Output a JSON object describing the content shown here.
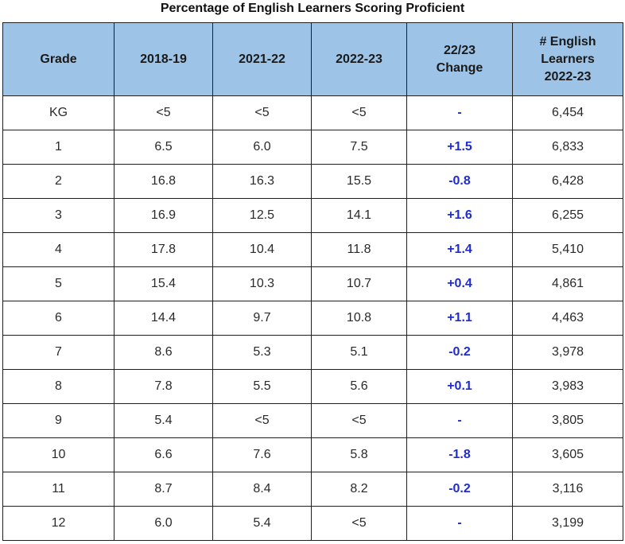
{
  "title": "Percentage of English Learners Scoring Proficient",
  "chart_data": {
    "type": "table",
    "title": "Percentage of English Learners Scoring Proficient",
    "columns": [
      [
        "Grade"
      ],
      [
        "2018-19"
      ],
      [
        "2021-22"
      ],
      [
        "2022-23"
      ],
      [
        "22/23",
        "Change"
      ],
      [
        "# English",
        "Learners",
        "2022-23"
      ]
    ],
    "rows": [
      [
        "KG",
        "<5",
        "<5",
        "<5",
        "-",
        "6,454"
      ],
      [
        "1",
        "6.5",
        "6.0",
        "7.5",
        "+1.5",
        "6,833"
      ],
      [
        "2",
        "16.8",
        "16.3",
        "15.5",
        "-0.8",
        "6,428"
      ],
      [
        "3",
        "16.9",
        "12.5",
        "14.1",
        "+1.6",
        "6,255"
      ],
      [
        "4",
        "17.8",
        "10.4",
        "11.8",
        "+1.4",
        "5,410"
      ],
      [
        "5",
        "15.4",
        "10.3",
        "10.7",
        "+0.4",
        "4,861"
      ],
      [
        "6",
        "14.4",
        "9.7",
        "10.8",
        "+1.1",
        "4,463"
      ],
      [
        "7",
        "8.6",
        "5.3",
        "5.1",
        "-0.2",
        "3,978"
      ],
      [
        "8",
        "7.8",
        "5.5",
        "5.6",
        "+0.1",
        "3,983"
      ],
      [
        "9",
        "5.4",
        "<5",
        "<5",
        "-",
        "3,805"
      ],
      [
        "10",
        "6.6",
        "7.6",
        "5.8",
        "-1.8",
        "3,605"
      ],
      [
        "11",
        "8.7",
        "8.4",
        "8.2",
        "-0.2",
        "3,116"
      ],
      [
        "12",
        "6.0",
        "5.4",
        "<5",
        "-",
        "3,199"
      ]
    ],
    "colors": {
      "header_background": "#9dc3e6",
      "change_text": "#1f2ccf",
      "border": "#1f1f1f"
    }
  }
}
